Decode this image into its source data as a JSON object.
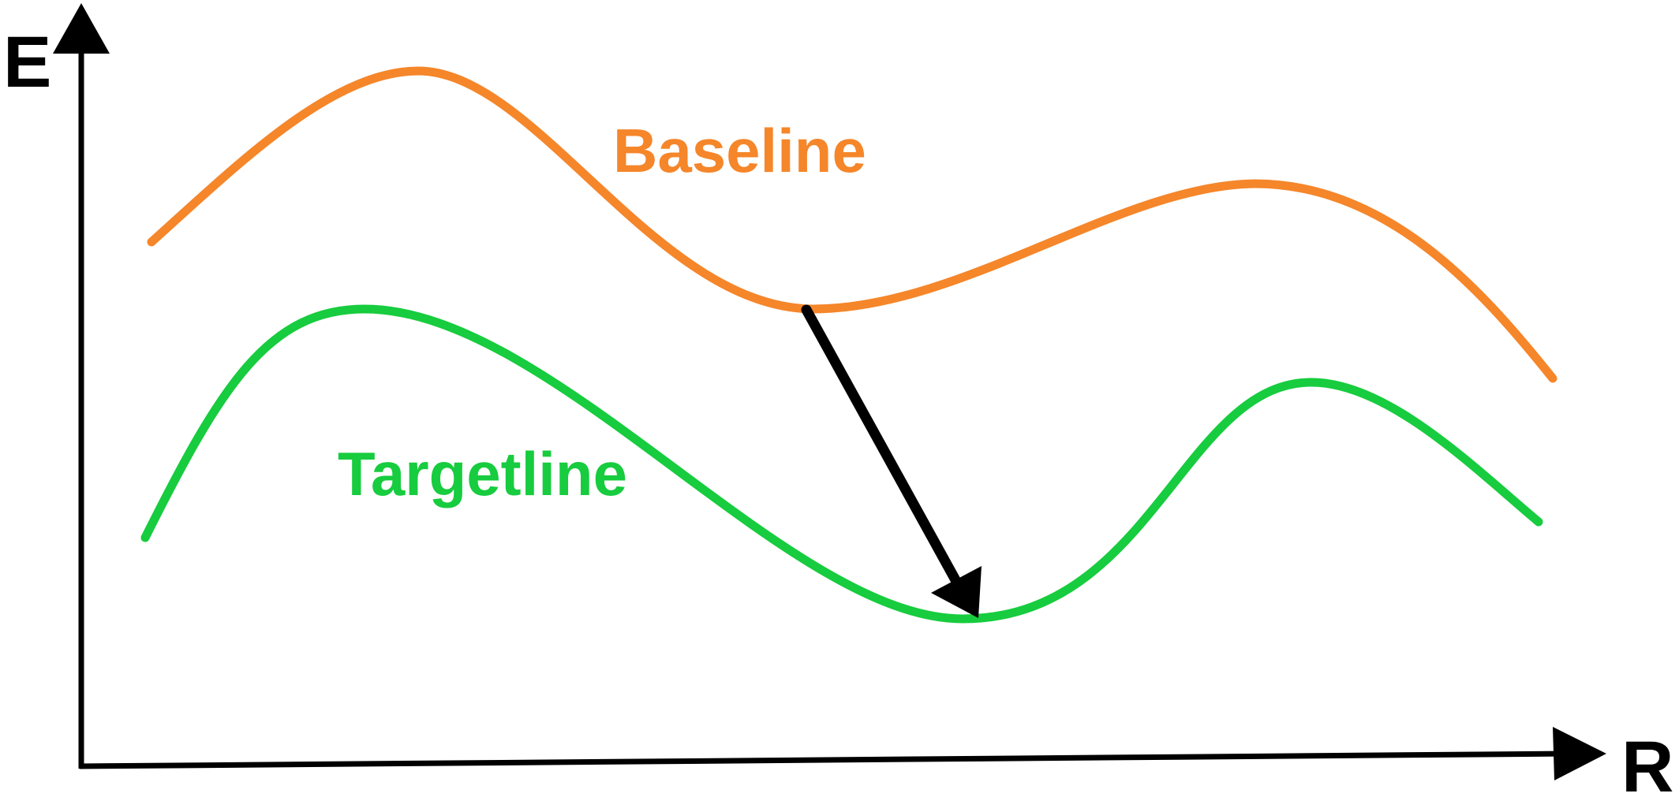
{
  "axes": {
    "y_label": "E",
    "x_label": "R",
    "color": "#000000"
  },
  "curves": {
    "baseline": {
      "label": "Baseline",
      "color": "#F5862A"
    },
    "targetline": {
      "label": "Targetline",
      "color": "#17CC3E"
    }
  },
  "transition_arrow": {
    "from": "Baseline",
    "to": "Targetline",
    "color": "#000000"
  }
}
